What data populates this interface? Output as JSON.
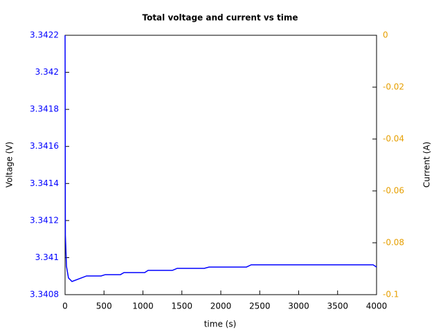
{
  "chart_data": {
    "type": "line",
    "title": "Total voltage and current vs time",
    "xlabel": "time (s)",
    "ylabel": "Voltage (V)",
    "y2label": "Current (A)",
    "x": [
      0,
      4,
      18,
      44,
      89,
      276,
      462,
      516,
      711,
      756,
      1022,
      1067,
      1378,
      1440,
      1787,
      1849,
      2329,
      2391,
      3956,
      4000
    ],
    "series": [
      {
        "name": "Voltage",
        "color": "#0000ff",
        "axis": "y",
        "values": [
          3.3422,
          3.341121,
          3.340953,
          3.34089,
          3.340871,
          3.340901,
          3.340901,
          3.340908,
          3.340908,
          3.340919,
          3.340919,
          3.340931,
          3.340931,
          3.340942,
          3.340942,
          3.340949,
          3.340949,
          3.340961,
          3.340961,
          3.340949
        ]
      }
    ],
    "xlim": [
      0,
      4000
    ],
    "xticks": [
      0,
      500,
      1000,
      1500,
      2000,
      2500,
      3000,
      3500,
      4000
    ],
    "ylim": [
      3.3408,
      3.3422
    ],
    "yticks": [
      3.3408,
      3.341,
      3.3412,
      3.3414,
      3.3416,
      3.3418,
      3.342,
      3.3422
    ],
    "y2lim": [
      -0.1,
      0
    ],
    "y2ticks": [
      -0.1,
      -0.08,
      -0.06,
      -0.04,
      -0.02,
      0
    ],
    "ytick_color": "#0000ff",
    "y2tick_color": "#e69f00"
  }
}
